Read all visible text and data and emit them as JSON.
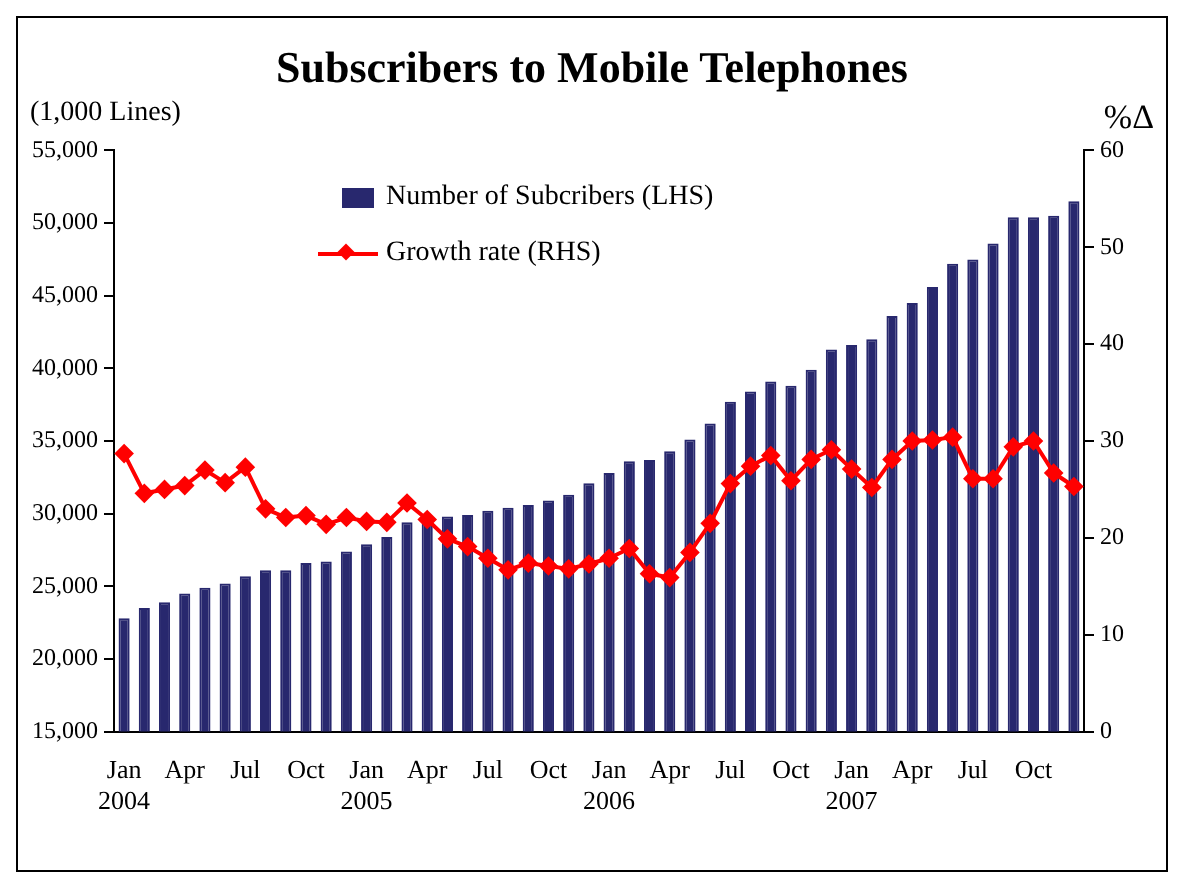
{
  "chart_data": {
    "type": "bar",
    "title": "Subscribers to Mobile Telephones",
    "ylabel": "(1,000 Lines)",
    "y2label": "%Δ",
    "categories": [
      "Jan 2004",
      null,
      null,
      "Apr",
      null,
      null,
      "Jul",
      null,
      null,
      "Oct",
      null,
      null,
      "Jan 2005",
      null,
      null,
      "Apr",
      null,
      null,
      "Jul",
      null,
      null,
      "Oct",
      null,
      null,
      "Jan 2006",
      null,
      null,
      "Apr",
      null,
      null,
      "Jul",
      null,
      null,
      "Oct",
      null,
      null,
      "Jan 2007",
      null,
      null,
      "Apr",
      null,
      null,
      "Jul",
      null,
      null,
      "Oct",
      null,
      null
    ],
    "series": [
      {
        "name": "Number of Subcribers (LHS)",
        "color": "#28286e",
        "values": [
          22800,
          23500,
          23900,
          24500,
          24900,
          25200,
          25700,
          26100,
          26100,
          26600,
          26700,
          27400,
          27900,
          28400,
          29400,
          29500,
          29800,
          29900,
          30200,
          30400,
          30600,
          30900,
          31300,
          32100,
          32800,
          33600,
          33700,
          34300,
          35100,
          36200,
          37700,
          38400,
          39100,
          38800,
          39900,
          41300,
          41600,
          42000,
          43600,
          44500,
          45600,
          47200,
          47500,
          48600,
          50400,
          50400,
          50500,
          51500
        ]
      },
      {
        "name": "Growth rate (RHS)",
        "type": "line",
        "axis": "y2",
        "color": "#ff0000",
        "marker": "diamond",
        "values": [
          28.7,
          24.6,
          25.0,
          25.4,
          27.0,
          25.7,
          27.3,
          23.0,
          22.1,
          22.3,
          21.4,
          22.1,
          21.7,
          21.6,
          23.6,
          21.9,
          19.9,
          19.1,
          17.9,
          16.7,
          17.4,
          17.1,
          16.8,
          17.3,
          17.9,
          18.9,
          16.3,
          15.9,
          18.5,
          21.5,
          25.6,
          27.4,
          28.5,
          25.9,
          28.1,
          29.1,
          27.1,
          25.2,
          28.1,
          30.0,
          30.1,
          30.4,
          26.1,
          26.1,
          29.4,
          30.0,
          26.7,
          25.3
        ]
      }
    ],
    "ylim": [
      15000,
      55000
    ],
    "yticks": [
      {
        "value": 15000,
        "label": "15,000"
      },
      {
        "value": 20000,
        "label": "20,000"
      },
      {
        "value": 25000,
        "label": "25,000"
      },
      {
        "value": 30000,
        "label": "30,000"
      },
      {
        "value": 35000,
        "label": "35,000"
      },
      {
        "value": 40000,
        "label": "40,000"
      },
      {
        "value": 45000,
        "label": "45,000"
      },
      {
        "value": 50000,
        "label": "50,000"
      },
      {
        "value": 55000,
        "label": "55,000"
      }
    ],
    "y2lim": [
      0,
      60
    ],
    "y2ticks": [
      0,
      10,
      20,
      30,
      40,
      50,
      60
    ],
    "grid": false,
    "legend": "top left"
  }
}
